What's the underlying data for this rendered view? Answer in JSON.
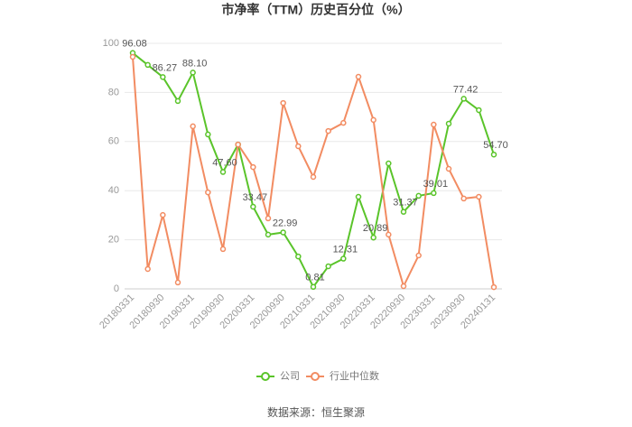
{
  "chart_data": {
    "type": "line",
    "title": "市净率（TTM）历史百分位（%）",
    "source": "数据来源：恒生聚源",
    "categories": [
      "20180331",
      null,
      "20180930",
      null,
      "20190331",
      null,
      "20190930",
      null,
      "20200331",
      null,
      "20200930",
      null,
      "20210331",
      null,
      "20210930",
      null,
      "20220331",
      null,
      "20220930",
      null,
      "20230331",
      null,
      "20230930",
      null,
      "20240131"
    ],
    "series": [
      {
        "name": "公司",
        "color": "#5ac42a",
        "values": [
          96.08,
          91.2,
          86.27,
          76.5,
          88.1,
          62.9,
          47.6,
          58.8,
          33.47,
          22.1,
          22.99,
          13.2,
          0.81,
          9.2,
          12.31,
          37.5,
          20.89,
          51.1,
          31.37,
          37.9,
          39.01,
          67.3,
          77.42,
          72.8,
          54.7
        ],
        "value_labels": [
          "96.08",
          null,
          "86.27",
          null,
          "88.10",
          null,
          "47.60",
          null,
          "33.47",
          null,
          "22.99",
          null,
          "0.81",
          null,
          "12.31",
          null,
          "20.89",
          null,
          "31.37",
          null,
          "39.01",
          null,
          "77.42",
          null,
          "54.70"
        ]
      },
      {
        "name": "行业中位数",
        "color": "#f28c62",
        "values": [
          94.5,
          8.1,
          30.1,
          2.6,
          66.2,
          39.3,
          16.2,
          58.8,
          49.6,
          28.7,
          75.7,
          58.1,
          45.6,
          64.3,
          67.6,
          86.4,
          68.8,
          22.1,
          1.1,
          13.6,
          66.9,
          48.9,
          36.8,
          37.5,
          0.7
        ]
      }
    ],
    "ylim": [
      0,
      100
    ],
    "yticks": [
      0,
      20,
      40,
      60,
      80,
      100
    ],
    "grid": true,
    "legend": "bottom"
  }
}
